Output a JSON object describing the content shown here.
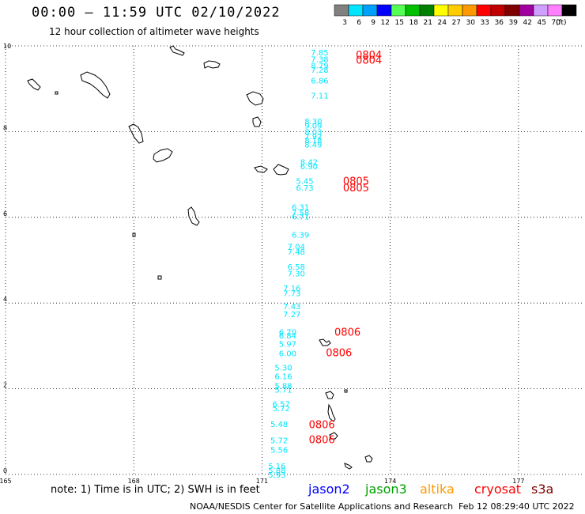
{
  "header": {
    "title": "00:00 – 11:59 UTC 02/10/2022",
    "subtitle": "12 hour collection of altimeter wave heights"
  },
  "legend": {
    "unit": "(ft)",
    "bins": [
      {
        "label": "3",
        "color": "#808080"
      },
      {
        "label": "6",
        "color": "#00e5ff"
      },
      {
        "label": "9",
        "color": "#00a0ff"
      },
      {
        "label": "12",
        "color": "#0000ff"
      },
      {
        "label": "15",
        "color": "#55ff55"
      },
      {
        "label": "18",
        "color": "#00c000"
      },
      {
        "label": "21",
        "color": "#008000"
      },
      {
        "label": "24",
        "color": "#ffff00"
      },
      {
        "label": "27",
        "color": "#ffcc00"
      },
      {
        "label": "30",
        "color": "#ff9900"
      },
      {
        "label": "33",
        "color": "#ff0000"
      },
      {
        "label": "36",
        "color": "#c00000"
      },
      {
        "label": "39",
        "color": "#800000"
      },
      {
        "label": "42",
        "color": "#a000a0"
      },
      {
        "label": "45",
        "color": "#d0a0ff"
      },
      {
        "label": "70",
        "color": "#ff80ff"
      },
      {
        "label": "",
        "color": "#000000"
      }
    ]
  },
  "axes": {
    "x_ticks": [
      {
        "value": 165,
        "label": "165"
      },
      {
        "value": 168,
        "label": "168"
      },
      {
        "value": 171,
        "label": "171"
      },
      {
        "value": 174,
        "label": "174"
      },
      {
        "value": 177,
        "label": "177"
      }
    ],
    "y_ticks": [
      {
        "value": 0,
        "label": "0"
      },
      {
        "value": 2,
        "label": "2"
      },
      {
        "value": 4,
        "label": "4"
      },
      {
        "value": 6,
        "label": "6"
      },
      {
        "value": 8,
        "label": "8"
      },
      {
        "value": 10,
        "label": "10"
      }
    ],
    "xlim": [
      165,
      178.5
    ],
    "ylim": [
      0,
      10
    ]
  },
  "chart_data": {
    "type": "scatter",
    "track_color": "#00e5ff",
    "time_color": "#ff0000",
    "swh_values": [
      {
        "lon": 172.35,
        "lat": 9.85,
        "text": "7.85"
      },
      {
        "lon": 172.35,
        "lat": 9.7,
        "text": "7.38"
      },
      {
        "lon": 172.35,
        "lat": 9.55,
        "text": "8.79"
      },
      {
        "lon": 172.35,
        "lat": 9.45,
        "text": "7.28"
      },
      {
        "lon": 172.35,
        "lat": 9.2,
        "text": "6.86"
      },
      {
        "lon": 172.35,
        "lat": 8.85,
        "text": "7.11"
      },
      {
        "lon": 172.2,
        "lat": 8.25,
        "text": "8.30"
      },
      {
        "lon": 172.2,
        "lat": 8.15,
        "text": "9.09"
      },
      {
        "lon": 172.2,
        "lat": 8.0,
        "text": "8.03"
      },
      {
        "lon": 172.2,
        "lat": 7.9,
        "text": "7.92"
      },
      {
        "lon": 172.2,
        "lat": 7.8,
        "text": "8.18"
      },
      {
        "lon": 172.2,
        "lat": 7.7,
        "text": "8.49"
      },
      {
        "lon": 172.1,
        "lat": 7.3,
        "text": "8.42"
      },
      {
        "lon": 172.1,
        "lat": 7.2,
        "text": "6.90"
      },
      {
        "lon": 172.0,
        "lat": 6.85,
        "text": "5.45"
      },
      {
        "lon": 172.0,
        "lat": 6.7,
        "text": "6.73"
      },
      {
        "lon": 171.9,
        "lat": 6.25,
        "text": "6.31"
      },
      {
        "lon": 171.9,
        "lat": 6.12,
        "text": "7.58"
      },
      {
        "lon": 171.9,
        "lat": 6.02,
        "text": "6.71"
      },
      {
        "lon": 171.9,
        "lat": 5.6,
        "text": "6.39"
      },
      {
        "lon": 171.8,
        "lat": 5.32,
        "text": "7.04"
      },
      {
        "lon": 171.8,
        "lat": 5.2,
        "text": "7.48"
      },
      {
        "lon": 171.8,
        "lat": 4.85,
        "text": "6.58"
      },
      {
        "lon": 171.8,
        "lat": 4.7,
        "text": "7.30"
      },
      {
        "lon": 171.7,
        "lat": 4.35,
        "text": "7.16"
      },
      {
        "lon": 171.7,
        "lat": 4.23,
        "text": "7.73"
      },
      {
        "lon": 171.7,
        "lat": 3.93,
        "text": "7.43"
      },
      {
        "lon": 171.7,
        "lat": 3.75,
        "text": "7.27"
      },
      {
        "lon": 171.6,
        "lat": 3.33,
        "text": "6.70"
      },
      {
        "lon": 171.6,
        "lat": 3.25,
        "text": "6.84"
      },
      {
        "lon": 171.6,
        "lat": 3.05,
        "text": "5.97"
      },
      {
        "lon": 171.6,
        "lat": 2.83,
        "text": "6.00"
      },
      {
        "lon": 171.5,
        "lat": 2.5,
        "text": "5.30"
      },
      {
        "lon": 171.5,
        "lat": 2.3,
        "text": "6.16"
      },
      {
        "lon": 171.5,
        "lat": 2.08,
        "text": "5.88"
      },
      {
        "lon": 171.5,
        "lat": 1.98,
        "text": "5.71"
      },
      {
        "lon": 171.45,
        "lat": 1.65,
        "text": "6.57"
      },
      {
        "lon": 171.45,
        "lat": 1.55,
        "text": "5.72"
      },
      {
        "lon": 171.4,
        "lat": 1.18,
        "text": "5.48"
      },
      {
        "lon": 171.4,
        "lat": 0.8,
        "text": "5.72"
      },
      {
        "lon": 171.4,
        "lat": 0.58,
        "text": "5.56"
      },
      {
        "lon": 171.35,
        "lat": 0.2,
        "text": "5.16"
      },
      {
        "lon": 171.35,
        "lat": 0.1,
        "text": "5.88"
      },
      {
        "lon": 171.35,
        "lat": 0.0,
        "text": "5.93"
      }
    ],
    "time_labels": [
      {
        "lon": 173.5,
        "lat": 9.8,
        "text": "0804"
      },
      {
        "lon": 173.5,
        "lat": 9.68,
        "text": "0804"
      },
      {
        "lon": 173.2,
        "lat": 6.85,
        "text": "0805"
      },
      {
        "lon": 173.2,
        "lat": 6.7,
        "text": "0805"
      },
      {
        "lon": 173.0,
        "lat": 3.33,
        "text": "0806"
      },
      {
        "lon": 172.8,
        "lat": 2.85,
        "text": "0806"
      },
      {
        "lon": 172.4,
        "lat": 1.17,
        "text": "0806"
      },
      {
        "lon": 172.4,
        "lat": 0.82,
        "text": "0806"
      }
    ]
  },
  "footer": {
    "note": "note:  1) Time is in UTC;  2) SWH is in feet",
    "satellites": [
      {
        "name": "jason2",
        "color": "#0000ff"
      },
      {
        "name": "jason3",
        "color": "#00a000"
      },
      {
        "name": "altika",
        "color": "#ff9900"
      },
      {
        "name": "cryosat",
        "color": "#ff0000"
      },
      {
        "name": "s3a",
        "color": "#800000"
      }
    ],
    "credit": "NOAA/NESDIS Center for Satellite Applications and Research",
    "timestamp": "Feb 12 08:29:40 UTC 2022"
  }
}
